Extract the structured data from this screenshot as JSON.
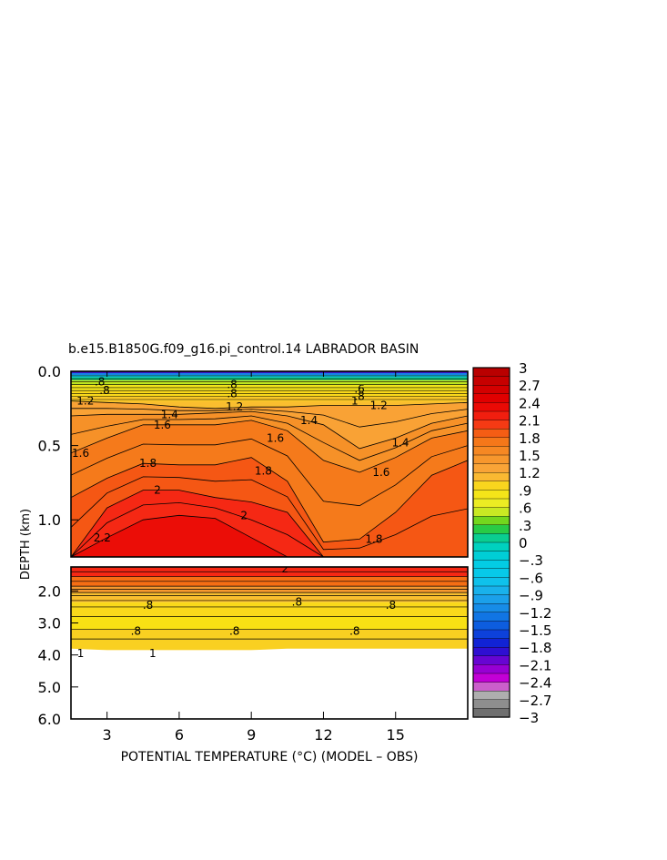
{
  "chart_data": {
    "type": "heatmap",
    "title": "b.e15.B1850G.f09_g16.pi_control.14 LABRADOR BASIN",
    "xlabel": "POTENTIAL TEMPERATURE (°C) (MODEL – OBS)",
    "ylabel": "DEPTH (km)",
    "xlim": [
      1.5,
      18
    ],
    "x_ticks": [
      3,
      6,
      9,
      12,
      15
    ],
    "x_tick_labels": [
      "3",
      "6",
      "9",
      "12",
      "15"
    ],
    "upper_panel": {
      "ylim": [
        0.0,
        1.25
      ],
      "y_ticks": [
        0.0,
        0.5,
        1.0
      ],
      "y_tick_labels": [
        "0.0",
        "0.5",
        "1.0"
      ],
      "profile_x": [
        1.5,
        3,
        4.5,
        6,
        7.5,
        9,
        10.5,
        12,
        13.5,
        15,
        16.5,
        18
      ],
      "isotherm_depths": [
        {
          "level": 1.2,
          "depths": [
            0.2,
            0.21,
            0.22,
            0.24,
            0.25,
            0.24,
            0.24,
            0.23,
            0.23,
            0.23,
            0.22,
            0.21
          ]
        },
        {
          "level": 1.4,
          "depths": [
            0.3,
            0.29,
            0.29,
            0.29,
            0.28,
            0.27,
            0.3,
            0.36,
            0.52,
            0.45,
            0.35,
            0.3
          ]
        },
        {
          "level": 1.6,
          "depths": [
            0.55,
            0.45,
            0.36,
            0.36,
            0.36,
            0.33,
            0.4,
            0.6,
            0.68,
            0.58,
            0.45,
            0.4
          ]
        },
        {
          "level": 1.8,
          "depths": [
            0.85,
            0.72,
            0.62,
            0.63,
            0.63,
            0.58,
            0.74,
            1.15,
            1.13,
            0.95,
            0.7,
            0.6
          ]
        },
        {
          "level": 2.0,
          "depths": [
            1.25,
            0.92,
            0.8,
            0.8,
            0.85,
            0.88,
            0.95,
            1.25,
            1.25,
            1.25,
            1.25,
            1.25
          ]
        },
        {
          "level": 2.2,
          "depths": [
            1.25,
            1.12,
            1.0,
            0.97,
            0.99,
            1.12,
            1.25,
            1.25,
            1.25,
            1.25,
            1.25,
            1.25
          ]
        }
      ],
      "contour_labels": [
        {
          "text": "1.2",
          "x": 2.1,
          "depth": 0.2
        },
        {
          "text": "1.2",
          "x": 8.3,
          "depth": 0.24
        },
        {
          "text": "1.2",
          "x": 14.3,
          "depth": 0.23
        },
        {
          "text": "1.4",
          "x": 5.6,
          "depth": 0.29
        },
        {
          "text": "1.4",
          "x": 11.4,
          "depth": 0.33
        },
        {
          "text": "1.4",
          "x": 15.2,
          "depth": 0.48
        },
        {
          "text": "1.6",
          "x": 5.3,
          "depth": 0.36
        },
        {
          "text": "1.6",
          "x": 10.0,
          "depth": 0.45
        },
        {
          "text": "1.6",
          "x": 1.9,
          "depth": 0.55
        },
        {
          "text": "1.6",
          "x": 14.4,
          "depth": 0.68
        },
        {
          "text": "1.8",
          "x": 4.7,
          "depth": 0.62
        },
        {
          "text": "1.8",
          "x": 9.5,
          "depth": 0.67
        },
        {
          "text": "1.8",
          "x": 14.1,
          "depth": 1.13
        },
        {
          "text": "2",
          "x": 5.1,
          "depth": 0.8
        },
        {
          "text": "2",
          "x": 8.7,
          "depth": 0.97
        },
        {
          "text": "2.2",
          "x": 2.8,
          "depth": 1.12
        },
        {
          "text": ".8",
          "x": 2.7,
          "depth": 0.07
        },
        {
          "text": ".8",
          "x": 2.9,
          "depth": 0.13
        },
        {
          "text": ".8",
          "x": 8.2,
          "depth": 0.09
        },
        {
          "text": ".8",
          "x": 8.2,
          "depth": 0.15
        },
        {
          "text": ".6",
          "x": 13.5,
          "depth": 0.12
        },
        {
          "text": ".8",
          "x": 13.5,
          "depth": 0.17
        },
        {
          "text": "1",
          "x": 13.3,
          "depth": 0.2
        }
      ]
    },
    "lower_panel": {
      "ylim": [
        1.25,
        6.0
      ],
      "y_ticks": [
        2.0,
        3.0,
        4.0,
        5.0,
        6.0
      ],
      "y_tick_labels": [
        "2.0",
        "3.0",
        "4.0",
        "5.0",
        "6.0"
      ],
      "bottom_depth_km": [
        3.8,
        3.85,
        3.85,
        3.85,
        3.85,
        3.85,
        3.8,
        3.8,
        3.8,
        3.8,
        3.8,
        3.8
      ],
      "bands": [
        {
          "from_depth": 1.25,
          "to_depth": 1.55,
          "value": 2.1
        },
        {
          "from_depth": 1.55,
          "to_depth": 1.85,
          "value": 1.8
        },
        {
          "from_depth": 1.85,
          "to_depth": 2.05,
          "value": 1.4
        },
        {
          "from_depth": 2.05,
          "to_depth": 2.35,
          "value": 1.1
        },
        {
          "from_depth": 2.35,
          "to_depth": 2.8,
          "value": 0.95
        },
        {
          "from_depth": 2.8,
          "to_depth": 3.2,
          "value": 0.9
        },
        {
          "from_depth": 3.2,
          "to_depth": 3.85,
          "value": 1.0
        }
      ],
      "contour_labels": [
        {
          "text": "2",
          "x": 10.4,
          "depth": 1.3
        },
        {
          "text": ".8",
          "x": 4.2,
          "depth": 3.25
        },
        {
          "text": ".8",
          "x": 8.3,
          "depth": 3.25
        },
        {
          "text": ".8",
          "x": 13.3,
          "depth": 3.25
        },
        {
          "text": ".8",
          "x": 4.7,
          "depth": 2.45
        },
        {
          "text": ".8",
          "x": 10.9,
          "depth": 2.35
        },
        {
          "text": ".8",
          "x": 14.8,
          "depth": 2.45
        },
        {
          "text": "1",
          "x": 1.9,
          "depth": 3.95
        },
        {
          "text": "1",
          "x": 4.9,
          "depth": 3.95
        }
      ]
    },
    "colorbar": {
      "min": -3,
      "max": 3,
      "tick_values": [
        3,
        2.7,
        2.4,
        2.1,
        1.8,
        1.5,
        1.2,
        0.9,
        0.6,
        0.3,
        0,
        -0.3,
        -0.6,
        -0.9,
        -1.2,
        -1.5,
        -1.8,
        -2.1,
        -2.4,
        -2.7,
        -3
      ],
      "tick_labels": [
        "3",
        "2.7",
        "2.4",
        "2.1",
        "1.8",
        "1.5",
        "1.2",
        ".9",
        ".6",
        ".3",
        "0",
        "−.3",
        "−.6",
        "−.9",
        "−1.2",
        "−1.5",
        "−1.8",
        "−2.1",
        "−2.4",
        "−2.7",
        "−3"
      ]
    },
    "colors": {
      "axis": "#000000",
      "background": "#ffffff",
      "no_data": "#ffffff"
    }
  }
}
